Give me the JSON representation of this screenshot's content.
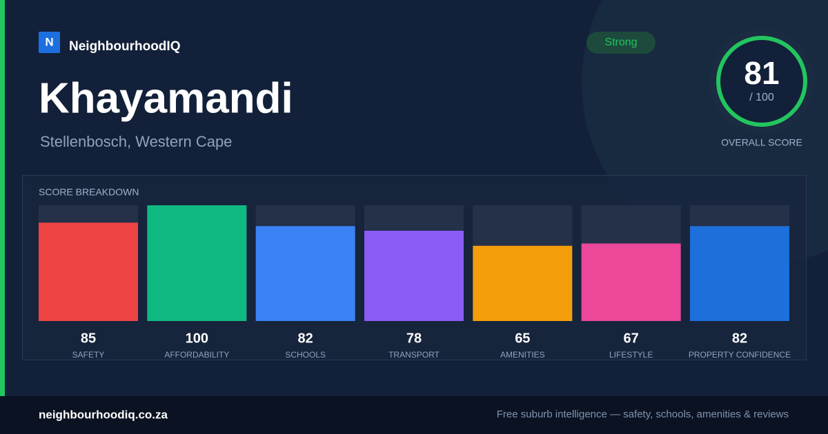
{
  "brand": {
    "logo_letter": "N",
    "name": "NeighbourhoodIQ"
  },
  "header": {
    "title": "Khayamandi",
    "subtitle": "Stellenbosch, Western Cape"
  },
  "badge": "Strong",
  "overall_score": {
    "value": 81,
    "max_label": "/ 100",
    "label": "OVERALL SCORE"
  },
  "chart_data": {
    "type": "bar",
    "title": "SCORE BREAKDOWN",
    "categories": [
      "SAFETY",
      "AFFORDABILITY",
      "SCHOOLS",
      "TRANSPORT",
      "AMENITIES",
      "LIFESTYLE",
      "PROPERTY CONFIDENCE"
    ],
    "values": [
      85,
      100,
      82,
      78,
      65,
      67,
      82
    ],
    "colors": [
      "#ef4444",
      "#10b981",
      "#3b82f6",
      "#8b5cf6",
      "#f59e0b",
      "#ec4899",
      "#1d6fdb"
    ],
    "ylim": [
      0,
      100
    ]
  },
  "footer": {
    "url": "neighbourhoodiq.co.za",
    "tagline": "Free suburb intelligence — safety, schools, amenities & reviews"
  }
}
